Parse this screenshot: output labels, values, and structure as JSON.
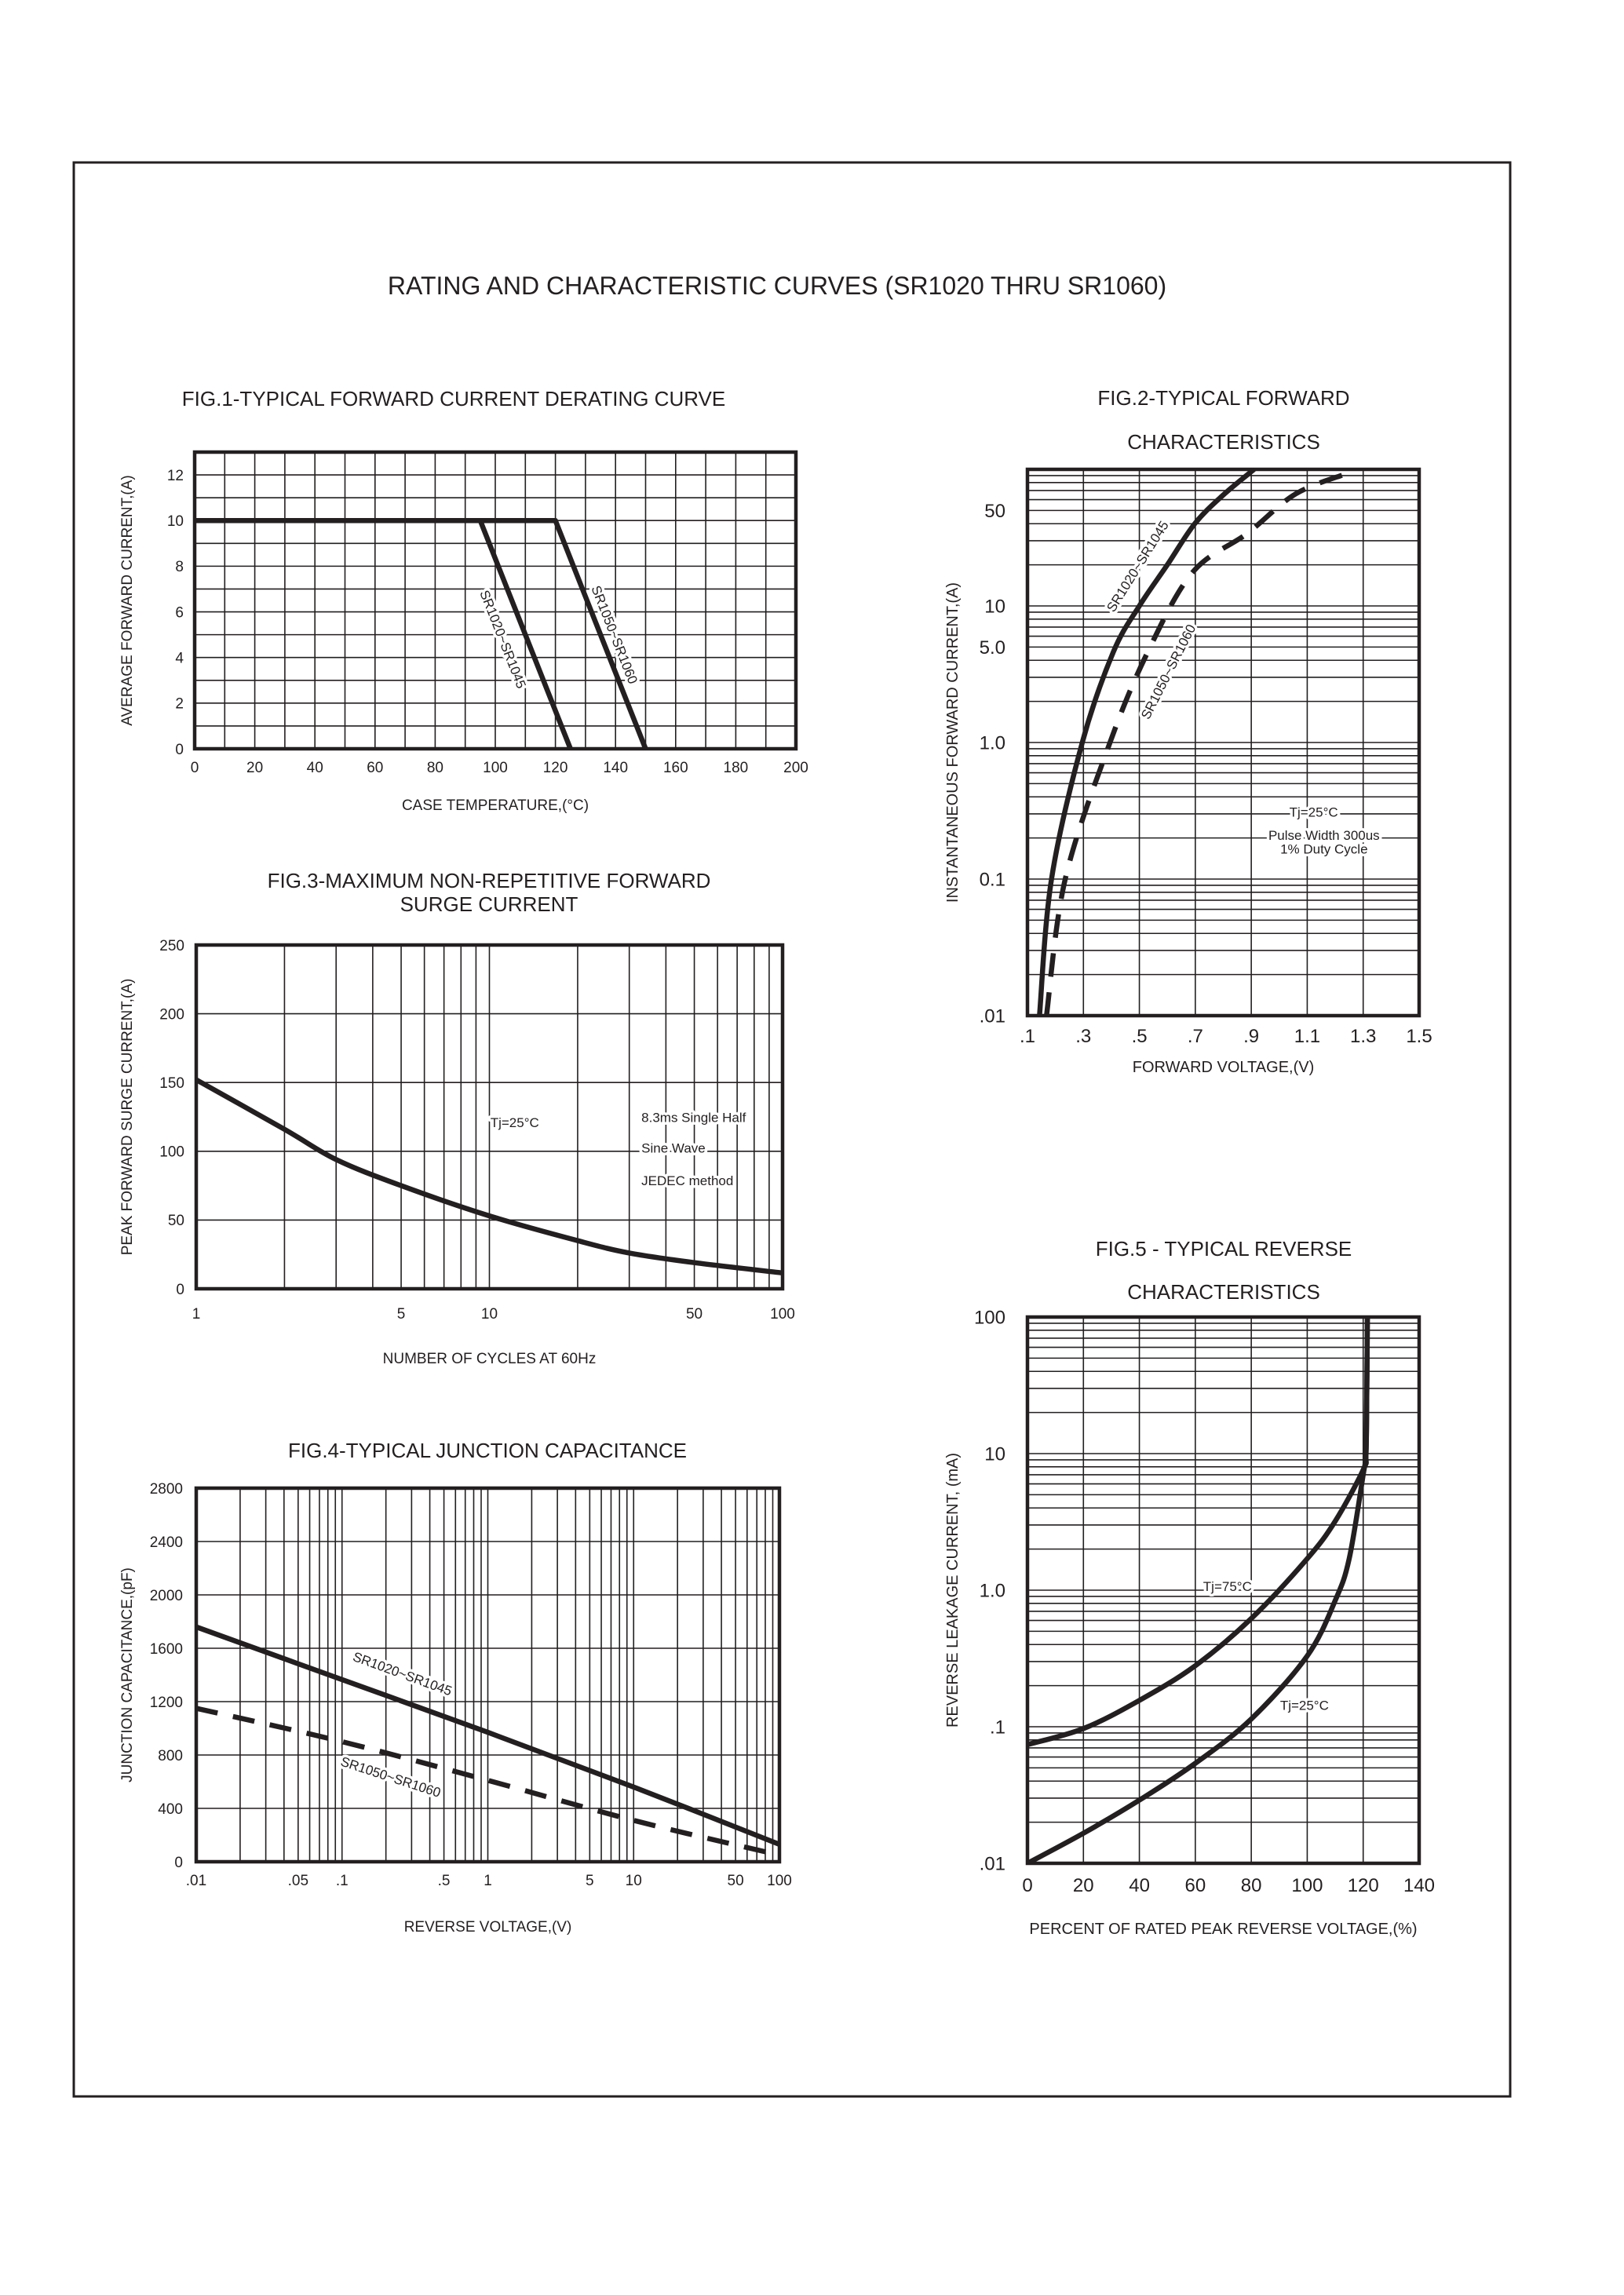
{
  "page": {
    "title": "RATING AND CHARACTERISTIC CURVES (SR1020 THRU SR1060)",
    "ink_color": "#231f20",
    "background_color": "#ffffff"
  },
  "chart_data": [
    {
      "type": "line",
      "title": [
        "FIG.1-TYPICAL FORWARD CURRENT DERATING CURVE"
      ],
      "xlabel": "CASE  TEMPERATURE,(°C)",
      "ylabel": "AVERAGE FORWARD CURRENT,(A)",
      "xscale": "linear",
      "yscale": "linear",
      "xlim": [
        0,
        200
      ],
      "ylim": [
        0,
        13
      ],
      "grid": true,
      "x_ticks": [
        {
          "value": 0,
          "label": "0"
        },
        {
          "value": 20,
          "label": "20"
        },
        {
          "value": 40,
          "label": "40"
        },
        {
          "value": 60,
          "label": "60"
        },
        {
          "value": 80,
          "label": "80"
        },
        {
          "value": 100,
          "label": "100"
        },
        {
          "value": 120,
          "label": "120"
        },
        {
          "value": 140,
          "label": "140"
        },
        {
          "value": 160,
          "label": "160"
        },
        {
          "value": 180,
          "label": "180"
        },
        {
          "value": 200,
          "label": "200"
        }
      ],
      "y_ticks": [
        {
          "value": 0,
          "label": "0"
        },
        {
          "value": 2,
          "label": "2"
        },
        {
          "value": 4,
          "label": "4"
        },
        {
          "value": 6,
          "label": "6"
        },
        {
          "value": 8,
          "label": "8"
        },
        {
          "value": 10,
          "label": "10"
        },
        {
          "value": 12,
          "label": "12"
        }
      ],
      "series": [
        {
          "name": "SR1020~SR1045",
          "style": "solid",
          "x": [
            0,
            95,
            125
          ],
          "y": [
            10,
            10,
            0
          ]
        },
        {
          "name": "SR1050~SR1060",
          "style": "solid",
          "x": [
            0,
            120,
            150
          ],
          "y": [
            10,
            10,
            0
          ]
        }
      ],
      "notes": []
    },
    {
      "type": "line",
      "title": [
        "FIG.2-TYPICAL FORWARD",
        "CHARACTERISTICS"
      ],
      "xlabel": "FORWARD VOLTAGE,(V)",
      "ylabel": "INSTANTANEOUS FORWARD CURRENT,(A)",
      "xscale": "linear",
      "yscale": "log",
      "xlim": [
        0.1,
        1.5
      ],
      "ylim": [
        0.01,
        100
      ],
      "grid": true,
      "x_ticks": [
        {
          "value": 0.1,
          "label": ".1"
        },
        {
          "value": 0.3,
          "label": ".3"
        },
        {
          "value": 0.5,
          "label": ".5"
        },
        {
          "value": 0.7,
          "label": ".7"
        },
        {
          "value": 0.9,
          "label": ".9"
        },
        {
          "value": 1.1,
          "label": "1.1"
        },
        {
          "value": 1.3,
          "label": "1.3"
        },
        {
          "value": 1.5,
          "label": "1.5"
        }
      ],
      "y_ticks": [
        {
          "value": 0.01,
          "label": ".01"
        },
        {
          "value": 0.1,
          "label": "0.1"
        },
        {
          "value": 1,
          "label": "1.0"
        },
        {
          "value": 5,
          "label": "5.0"
        },
        {
          "value": 10,
          "label": "10"
        },
        {
          "value": 50,
          "label": "50"
        }
      ],
      "series": [
        {
          "name": "SR1020~SR1045",
          "style": "solid",
          "x": [
            0.143,
            0.186,
            0.296,
            0.407,
            0.5,
            0.6,
            0.698,
            0.8,
            0.91
          ],
          "y": [
            0.01,
            0.1,
            1,
            4.6,
            10,
            20,
            40,
            65,
            100
          ]
        },
        {
          "name": "SR1050~SR1060",
          "style": "dashed",
          "x": [
            0.168,
            0.235,
            0.395,
            0.53,
            0.69,
            0.886,
            1.058,
            1.24
          ],
          "y": [
            0.01,
            0.1,
            1,
            4.6,
            17.6,
            34,
            66,
            93
          ]
        }
      ],
      "notes": [
        "Tj=25°C",
        "Pulse Width 300us",
        "1% Duty Cycle"
      ]
    },
    {
      "type": "line",
      "title": [
        "FIG.3-MAXIMUM NON-REPETITIVE FORWARD",
        "SURGE CURRENT"
      ],
      "xlabel": "NUMBER OF CYCLES AT 60Hz",
      "ylabel": "PEAK FORWARD SURGE CURRENT,(A)",
      "xscale": "log",
      "yscale": "linear",
      "xlim": [
        1,
        100
      ],
      "ylim": [
        0,
        250
      ],
      "grid": true,
      "x_ticks": [
        {
          "value": 1,
          "label": "1"
        },
        {
          "value": 5,
          "label": "5"
        },
        {
          "value": 10,
          "label": "10"
        },
        {
          "value": 50,
          "label": "50"
        },
        {
          "value": 100,
          "label": "100"
        }
      ],
      "y_ticks": [
        {
          "value": 0,
          "label": "0"
        },
        {
          "value": 50,
          "label": "50"
        },
        {
          "value": 100,
          "label": "100"
        },
        {
          "value": 150,
          "label": "150"
        },
        {
          "value": 200,
          "label": "200"
        },
        {
          "value": 250,
          "label": "250"
        }
      ],
      "series": [
        {
          "style": "solid",
          "x": [
            1,
            2,
            3,
            5,
            10,
            20,
            30,
            50,
            100
          ],
          "y": [
            152,
            116,
            94,
            75,
            53,
            35,
            26,
            19,
            11.5
          ]
        }
      ],
      "notes": [
        "Tj=25°C",
        "8.3ms Single Half",
        "Sine Wave",
        "JEDEC method"
      ]
    },
    {
      "type": "line",
      "title": [
        "FIG.4-TYPICAL JUNCTION CAPACITANCE"
      ],
      "xlabel": "REVERSE VOLTAGE,(V)",
      "ylabel": "JUNCTION CAPACITANCE,(pF)",
      "xscale": "log",
      "yscale": "linear",
      "xlim": [
        0.01,
        100
      ],
      "ylim": [
        0,
        2800
      ],
      "grid": true,
      "x_ticks": [
        {
          "value": 0.01,
          "label": ".01"
        },
        {
          "value": 0.05,
          "label": ".05"
        },
        {
          "value": 0.1,
          "label": ".1"
        },
        {
          "value": 0.5,
          "label": ".5"
        },
        {
          "value": 1,
          "label": "1"
        },
        {
          "value": 5,
          "label": "5"
        },
        {
          "value": 10,
          "label": "10"
        },
        {
          "value": 50,
          "label": "50"
        },
        {
          "value": 100,
          "label": "100"
        }
      ],
      "y_ticks": [
        {
          "value": 0,
          "label": "0"
        },
        {
          "value": 400,
          "label": "400"
        },
        {
          "value": 800,
          "label": "800"
        },
        {
          "value": 1200,
          "label": "1200"
        },
        {
          "value": 1600,
          "label": "1600"
        },
        {
          "value": 2000,
          "label": "2000"
        },
        {
          "value": 2400,
          "label": "2400"
        },
        {
          "value": 2800,
          "label": "2800"
        }
      ],
      "series": [
        {
          "name": "SR1020~SR1045",
          "style": "solid",
          "x": [
            0.01,
            0.1,
            1,
            10,
            100
          ],
          "y": [
            1760,
            1365,
            970,
            560,
            130
          ]
        },
        {
          "name": "SR1050~SR1060",
          "style": "dashed",
          "x": [
            0.01,
            0.1,
            1,
            10,
            100
          ],
          "y": [
            1150,
            900,
            610,
            310,
            50
          ]
        }
      ],
      "notes": []
    },
    {
      "type": "line",
      "title": [
        "FIG.5 - TYPICAL REVERSE",
        "CHARACTERISTICS"
      ],
      "xlabel": "PERCENT OF RATED PEAK REVERSE VOLTAGE,(%)",
      "ylabel": "REVERSE LEAKAGE CURRENT, (mA)",
      "xscale": "linear",
      "yscale": "log",
      "xlim": [
        0,
        140
      ],
      "ylim": [
        0.01,
        100
      ],
      "grid": true,
      "x_ticks": [
        {
          "value": 0,
          "label": "0"
        },
        {
          "value": 20,
          "label": "20"
        },
        {
          "value": 40,
          "label": "40"
        },
        {
          "value": 60,
          "label": "60"
        },
        {
          "value": 80,
          "label": "80"
        },
        {
          "value": 100,
          "label": "100"
        },
        {
          "value": 120,
          "label": "120"
        },
        {
          "value": 140,
          "label": "140"
        }
      ],
      "y_ticks": [
        {
          "value": 0.01,
          "label": ".01"
        },
        {
          "value": 0.1,
          "label": ".1"
        },
        {
          "value": 1,
          "label": "1.0"
        },
        {
          "value": 10,
          "label": "10"
        },
        {
          "value": 100,
          "label": "100"
        }
      ],
      "series": [
        {
          "name": "Tj=75°C",
          "style": "solid",
          "x": [
            0,
            20,
            40,
            60,
            80,
            100,
            110,
            120,
            121,
            121.3,
            121.5
          ],
          "y": [
            0.074,
            0.097,
            0.156,
            0.28,
            0.62,
            1.7,
            3.2,
            7.6,
            10,
            30,
            100
          ]
        },
        {
          "name": "Tj=25°C",
          "style": "solid",
          "x": [
            0,
            20,
            40,
            60,
            80,
            100,
            110,
            115,
            120,
            121,
            121.3,
            121.5
          ],
          "y": [
            0.01,
            0.0166,
            0.029,
            0.054,
            0.114,
            0.33,
            0.84,
            1.7,
            7.0,
            10,
            30,
            100
          ]
        }
      ],
      "notes": []
    }
  ]
}
